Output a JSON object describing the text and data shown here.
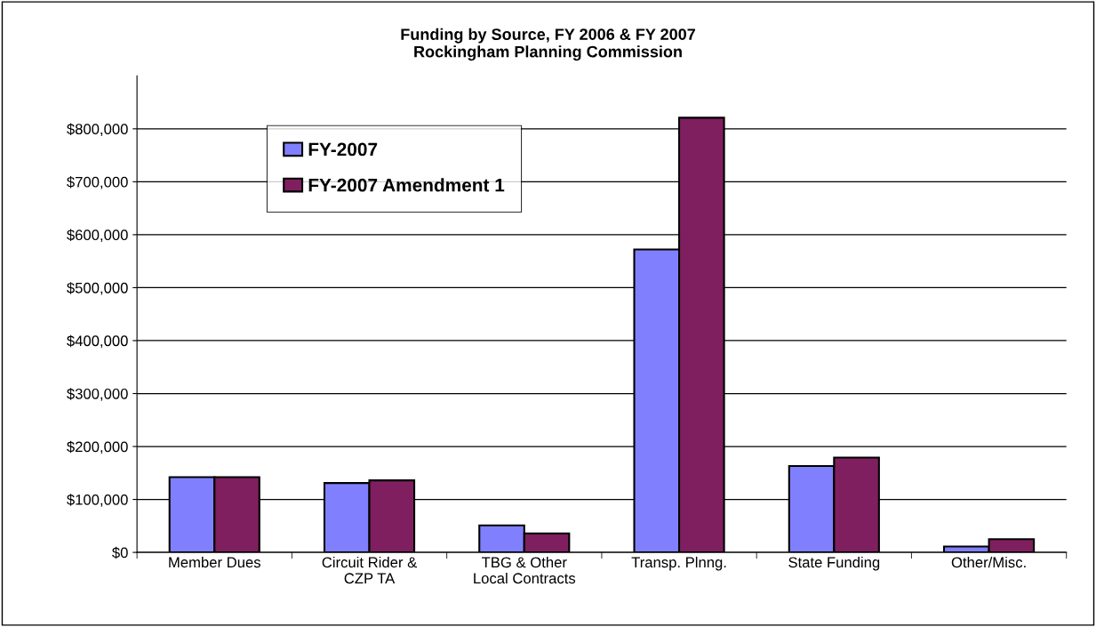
{
  "chart_data": {
    "type": "bar",
    "title": "Funding by Source, FY 2006 & FY 2007\nRockingham Planning Commission",
    "categories": [
      "Member Dues",
      "Circuit Rider &\nCZP TA",
      "TBG & Other\nLocal Contracts",
      "Transp. Plnng.",
      "State Funding",
      "Other/Misc."
    ],
    "series": [
      {
        "name": "FY-2007",
        "color": "#8080ff",
        "values": [
          142000,
          131000,
          51000,
          572000,
          163000,
          11000
        ]
      },
      {
        "name": "FY-2007 Amendment 1",
        "color": "#7f1f5f",
        "values": [
          142000,
          136000,
          36000,
          821000,
          179000,
          25000
        ]
      }
    ],
    "ylim": [
      0,
      900000
    ],
    "yticks": [
      {
        "value": 0,
        "label": "$0"
      },
      {
        "value": 100000,
        "label": "$100,000"
      },
      {
        "value": 200000,
        "label": "$200,000"
      },
      {
        "value": 300000,
        "label": "$300,000"
      },
      {
        "value": 400000,
        "label": "$400,000"
      },
      {
        "value": 500000,
        "label": "$500,000"
      },
      {
        "value": 600000,
        "label": "$600,000"
      },
      {
        "value": 700000,
        "label": "$700,000"
      },
      {
        "value": 800000,
        "label": "$800,000"
      }
    ],
    "grid": "y",
    "legend": "top left"
  }
}
